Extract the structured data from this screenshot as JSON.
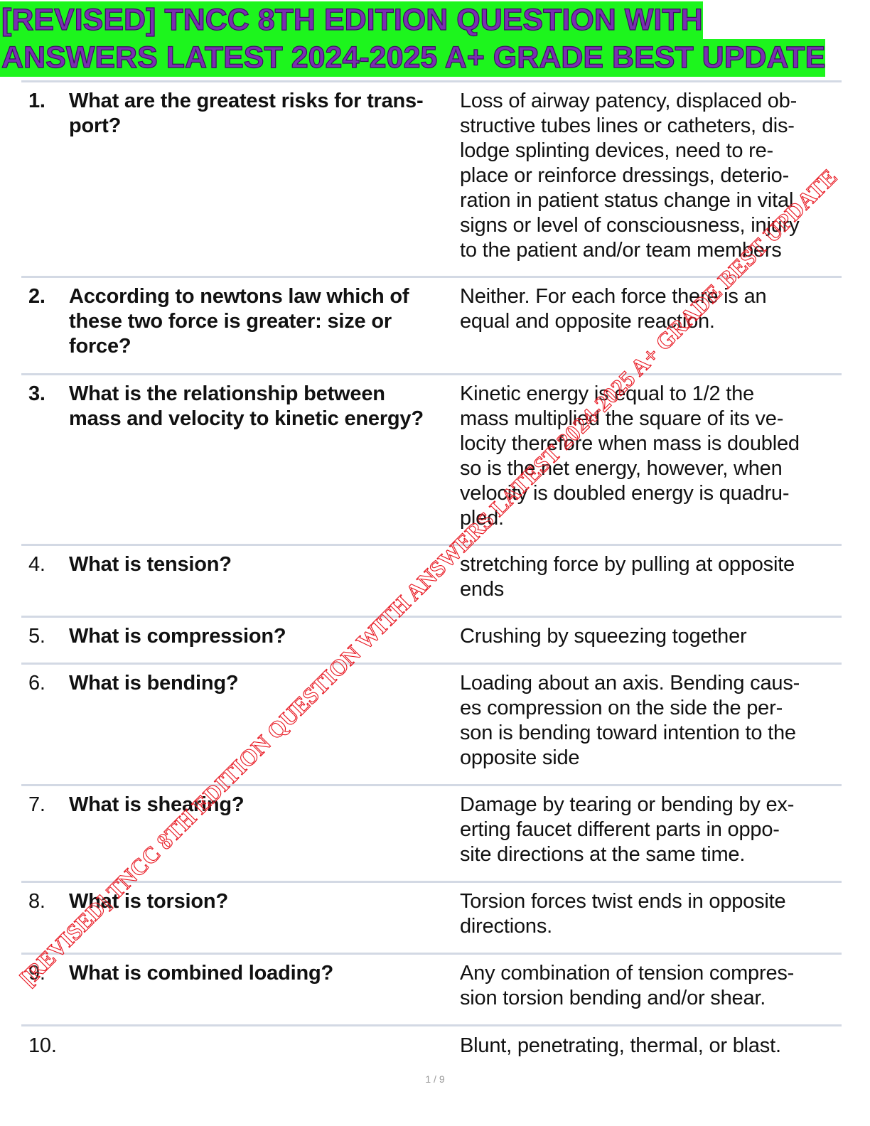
{
  "title": {
    "lines": [
      "[REVISED] TNCC 8TH EDITION QUESTION WITH",
      "ANSWERS LATEST 2024-2025 A+ GRADE BEST UPDATE"
    ]
  },
  "rows": [
    {
      "number": "1.",
      "question": [
        "What are the greatest risks for trans-",
        "port?"
      ],
      "answer": [
        "Loss of airway patency, displaced ob-",
        "structive tubes lines or catheters, dis-",
        "lodge splinting devices, need to re-",
        "place or reinforce dressings, deterio-",
        "ration in patient status change in vital",
        "signs or level of consciousness, injury",
        "to the patient and/or team members"
      ]
    },
    {
      "number": "2.",
      "question": [
        "According to newtons law which of",
        "these two force is greater: size or",
        "force?"
      ],
      "answer": [
        "Neither. For each force there is an",
        "equal and opposite reaction."
      ]
    },
    {
      "number": "3.",
      "question": [
        "What is the relationship between",
        "mass and velocity to kinetic energy?"
      ],
      "answer": [
        "Kinetic energy is equal to 1/2 the",
        "mass multiplied the square of its ve-",
        "locity therefore when mass is doubled",
        "so is the net energy, however, when",
        "velocity is doubled energy is quadru-",
        "pled."
      ]
    },
    {
      "number": "4.",
      "question": [
        "What is tension?"
      ],
      "answer": [
        "stretching force by pulling at opposite",
        "ends"
      ]
    },
    {
      "number": "5.",
      "question": [
        "What is compression?"
      ],
      "answer": [
        "Crushing by squeezing together"
      ]
    },
    {
      "number": "6.",
      "question": [
        "What is bending?"
      ],
      "answer": [
        "Loading about an axis. Bending caus-",
        "es compression on the side the per-",
        "son is bending toward intention to the",
        "opposite side"
      ]
    },
    {
      "number": "7.",
      "question": [
        "What is shearing?"
      ],
      "answer": [
        "Damage by tearing or bending by ex-",
        "erting faucet different parts in oppo-",
        "site directions at the same time."
      ]
    },
    {
      "number": "8.",
      "question": [
        "What is torsion?"
      ],
      "answer": [
        "Torsion forces twist ends in opposite",
        "directions."
      ]
    },
    {
      "number": "9.",
      "question": [
        "What is combined loading?"
      ],
      "answer": [
        "Any combination of tension compres-",
        "sion torsion bending and/or shear."
      ]
    },
    {
      "number": "10.",
      "question": null,
      "answer": [
        "Blunt, penetrating, thermal, or blast."
      ]
    }
  ],
  "watermark": "[REVISED] TNCC 8TH EDITION QUESTION WITH ANSWERS LATEST 2024-2025 A+ GRADE BEST UPDATE",
  "footer": {
    "page": "1 / 9"
  }
}
